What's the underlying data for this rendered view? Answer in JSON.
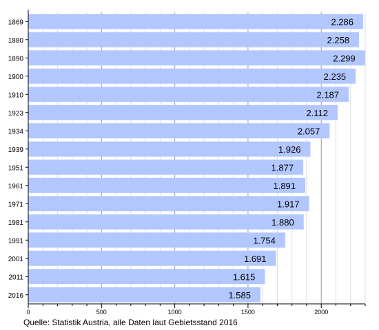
{
  "chart_data": {
    "type": "bar",
    "orientation": "horizontal",
    "categories": [
      "1869",
      "1880",
      "1890",
      "1900",
      "1910",
      "1923",
      "1934",
      "1939",
      "1951",
      "1961",
      "1971",
      "1981",
      "1991",
      "2001",
      "2011",
      "2016"
    ],
    "values": [
      2286,
      2258,
      2299,
      2235,
      2187,
      2112,
      2057,
      1926,
      1877,
      1891,
      1917,
      1880,
      1754,
      1691,
      1615,
      1585
    ],
    "value_labels": [
      "2.286",
      "2.258",
      "2.299",
      "2.235",
      "2.187",
      "2.112",
      "2.057",
      "1.926",
      "1.877",
      "1.891",
      "1.917",
      "1.880",
      "1.754",
      "1.691",
      "1.615",
      "1.585"
    ],
    "xlim": [
      0,
      2300
    ],
    "xticks": [
      0,
      500,
      1000,
      1500,
      2000
    ],
    "xtick_labels": [
      "0",
      "500",
      "1000",
      "1500",
      "2000"
    ],
    "minor_grid": true,
    "bar_color": "#b3c7ff",
    "title": "",
    "xlabel": "",
    "ylabel": ""
  },
  "source_note": "Quelle: Statistik Austria, alle Daten laut Gebietsstand 2016"
}
